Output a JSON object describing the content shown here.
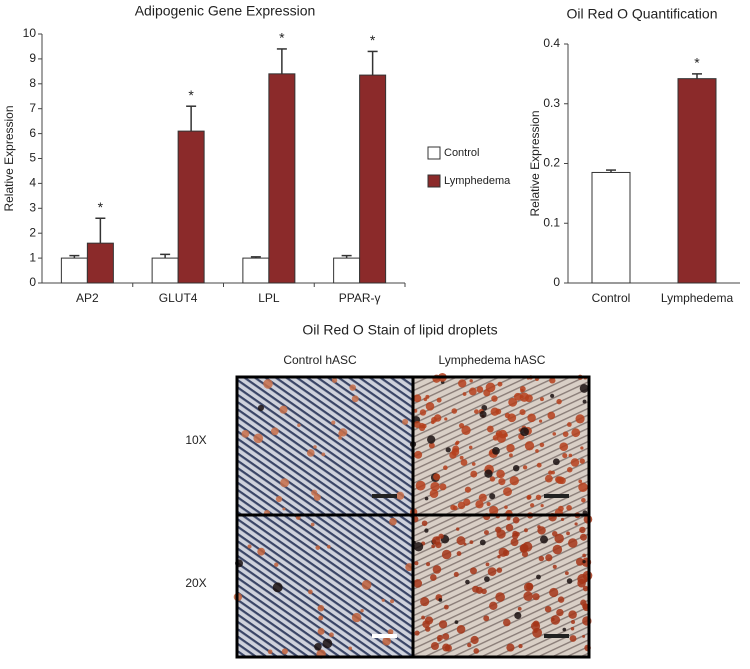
{
  "chart_data": [
    {
      "type": "bar",
      "title": "Adipogenic Gene Expression",
      "y_label": "Relative Expression",
      "categories": [
        "AP2",
        "GLUT4",
        "LPL",
        "PPAR-γ"
      ],
      "series": [
        {
          "name": "Control",
          "color": "#ffffff",
          "values": [
            1.0,
            1.0,
            1.0,
            1.0
          ],
          "errors": [
            0.1,
            0.15,
            0.05,
            0.1
          ]
        },
        {
          "name": "Lymphedema",
          "color": "#8b2a2a",
          "values": [
            1.6,
            6.1,
            8.4,
            8.35
          ],
          "errors": [
            1.0,
            1.0,
            1.0,
            0.95
          ],
          "annotations": [
            "*",
            "*",
            "*",
            "*"
          ]
        }
      ],
      "ylim": [
        0,
        10
      ],
      "yticks": [
        0,
        1,
        2,
        3,
        4,
        5,
        6,
        7,
        8,
        9,
        10
      ],
      "legend": "right"
    },
    {
      "type": "bar",
      "title": "Oil Red O Quantification",
      "y_label": "Relative Expression",
      "categories": [
        "Control",
        "Lymphedema"
      ],
      "series": [
        {
          "colors": [
            "#ffffff",
            "#8b2a2a"
          ],
          "values": [
            0.185,
            0.342
          ],
          "errors": [
            0.004,
            0.008
          ],
          "annotations": [
            null,
            "*"
          ]
        }
      ],
      "ylim": [
        0,
        0.4
      ],
      "yticks": [
        0,
        0.1,
        0.2,
        0.3,
        0.4
      ]
    }
  ],
  "image_panel": {
    "title": "Oil Red O Stain of lipid droplets",
    "columns": [
      "Control hASC",
      "Lymphedema hASC"
    ],
    "rows": [
      "10X",
      "20X"
    ]
  }
}
